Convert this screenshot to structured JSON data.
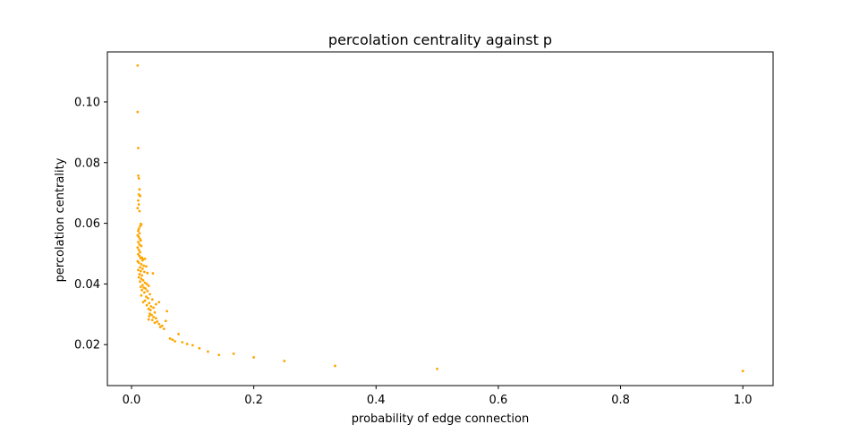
{
  "chart_data": {
    "type": "scatter",
    "title": "percolation centrality against p",
    "xlabel": "probability of edge connection",
    "ylabel": "percolation centrality",
    "xlim": [
      -0.0395,
      1.0495
    ],
    "ylim": [
      0.0065,
      0.1165
    ],
    "xticks": [
      0.0,
      0.2,
      0.4,
      0.6,
      0.8,
      1.0
    ],
    "xtick_labels": [
      "0.0",
      "0.2",
      "0.4",
      "0.6",
      "0.8",
      "1.0"
    ],
    "yticks": [
      0.02,
      0.04,
      0.06,
      0.08,
      0.1
    ],
    "ytick_labels": [
      "0.02",
      "0.04",
      "0.06",
      "0.08",
      "0.10"
    ],
    "grid": false,
    "marker_color": "#ffa500",
    "points": [
      [
        0.01,
        0.112
      ],
      [
        0.01,
        0.0967
      ],
      [
        0.011,
        0.0848
      ],
      [
        0.011,
        0.0757
      ],
      [
        0.012,
        0.0748
      ],
      [
        0.013,
        0.0712
      ],
      [
        0.012,
        0.0695
      ],
      [
        0.014,
        0.069
      ],
      [
        0.011,
        0.0675
      ],
      [
        0.012,
        0.0662
      ],
      [
        0.01,
        0.065
      ],
      [
        0.013,
        0.064
      ],
      [
        0.015,
        0.0598
      ],
      [
        0.016,
        0.0596
      ],
      [
        0.014,
        0.059
      ],
      [
        0.012,
        0.0582
      ],
      [
        0.011,
        0.0575
      ],
      [
        0.013,
        0.0567
      ],
      [
        0.01,
        0.056
      ],
      [
        0.012,
        0.0555
      ],
      [
        0.014,
        0.0548
      ],
      [
        0.015,
        0.0543
      ],
      [
        0.011,
        0.0538
      ],
      [
        0.013,
        0.053
      ],
      [
        0.016,
        0.0525
      ],
      [
        0.01,
        0.052
      ],
      [
        0.012,
        0.0512
      ],
      [
        0.014,
        0.0505
      ],
      [
        0.011,
        0.0498
      ],
      [
        0.013,
        0.0492
      ],
      [
        0.017,
        0.0487
      ],
      [
        0.015,
        0.0485
      ],
      [
        0.019,
        0.0481
      ],
      [
        0.022,
        0.0483
      ],
      [
        0.018,
        0.0478
      ],
      [
        0.01,
        0.0475
      ],
      [
        0.012,
        0.047
      ],
      [
        0.016,
        0.0465
      ],
      [
        0.02,
        0.046
      ],
      [
        0.024,
        0.0458
      ],
      [
        0.014,
        0.0455
      ],
      [
        0.018,
        0.045
      ],
      [
        0.011,
        0.0446
      ],
      [
        0.015,
        0.0442
      ],
      [
        0.021,
        0.044
      ],
      [
        0.026,
        0.0436
      ],
      [
        0.035,
        0.0435
      ],
      [
        0.013,
        0.0432
      ],
      [
        0.017,
        0.0428
      ],
      [
        0.012,
        0.0422
      ],
      [
        0.016,
        0.0417
      ],
      [
        0.019,
        0.0412
      ],
      [
        0.014,
        0.0408
      ],
      [
        0.022,
        0.0404
      ],
      [
        0.025,
        0.04
      ],
      [
        0.018,
        0.0396
      ],
      [
        0.028,
        0.0394
      ],
      [
        0.015,
        0.039
      ],
      [
        0.02,
        0.0388
      ],
      [
        0.023,
        0.0385
      ],
      [
        0.017,
        0.038
      ],
      [
        0.026,
        0.0377
      ],
      [
        0.021,
        0.0372
      ],
      [
        0.03,
        0.0366
      ],
      [
        0.016,
        0.0362
      ],
      [
        0.024,
        0.0358
      ],
      [
        0.027,
        0.0353
      ],
      [
        0.034,
        0.0349
      ],
      [
        0.022,
        0.0345
      ],
      [
        0.019,
        0.034
      ],
      [
        0.045,
        0.034
      ],
      [
        0.029,
        0.0337
      ],
      [
        0.04,
        0.0333
      ],
      [
        0.025,
        0.033
      ],
      [
        0.032,
        0.0326
      ],
      [
        0.036,
        0.0322
      ],
      [
        0.028,
        0.0318
      ],
      [
        0.031,
        0.0314
      ],
      [
        0.058,
        0.031
      ],
      [
        0.038,
        0.0306
      ],
      [
        0.03,
        0.0302
      ],
      [
        0.033,
        0.0298
      ],
      [
        0.029,
        0.0294
      ],
      [
        0.036,
        0.0291
      ],
      [
        0.04,
        0.0287
      ],
      [
        0.028,
        0.0283
      ],
      [
        0.034,
        0.0281
      ],
      [
        0.056,
        0.0278
      ],
      [
        0.042,
        0.0276
      ],
      [
        0.038,
        0.0272
      ],
      [
        0.045,
        0.0268
      ],
      [
        0.05,
        0.0262
      ],
      [
        0.047,
        0.0258
      ],
      [
        0.053,
        0.0252
      ],
      [
        0.077,
        0.0235
      ],
      [
        0.063,
        0.022
      ],
      [
        0.067,
        0.0216
      ],
      [
        0.071,
        0.0211
      ],
      [
        0.083,
        0.0208
      ],
      [
        0.091,
        0.0202
      ],
      [
        0.1,
        0.0198
      ],
      [
        0.111,
        0.0188
      ],
      [
        0.125,
        0.0177
      ],
      [
        0.143,
        0.0166
      ],
      [
        0.167,
        0.017
      ],
      [
        0.2,
        0.0158
      ],
      [
        0.25,
        0.0146
      ],
      [
        0.333,
        0.013
      ],
      [
        0.5,
        0.012
      ],
      [
        1.0,
        0.0113
      ]
    ]
  }
}
